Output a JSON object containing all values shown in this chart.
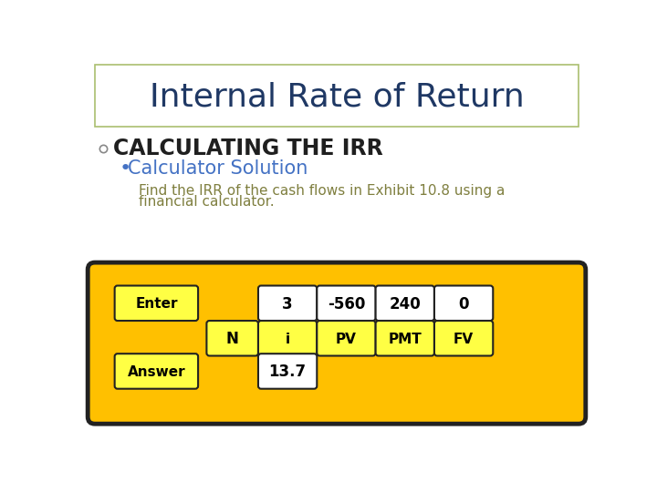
{
  "title": "Internal Rate of Return",
  "title_color": "#1F3864",
  "title_fontsize": 26,
  "bullet1": "CALCULATING THE IRR",
  "bullet1_color": "#1F1F1F",
  "bullet1_fontsize": 17,
  "bullet2": "Calculator Solution",
  "bullet2_color": "#4472C4",
  "bullet2_fontsize": 15,
  "body_text_line1": "Find the IRR of the cash flows in Exhibit 10.8 using a",
  "body_text_line2": "financial calculator.",
  "body_color": "#7F7F3F",
  "body_fontsize": 11,
  "calc_bg": "#FFC000",
  "calc_border": "#222222",
  "white_cell_color": "#FFFFFF",
  "yellow_cell_color": "#FFFF44",
  "enter_label": "Enter",
  "answer_label": "Answer",
  "row1_values": [
    "3",
    "-560",
    "240",
    "0"
  ],
  "row2_labels": [
    "N",
    "i",
    "PV",
    "PMT",
    "FV"
  ],
  "answer_value": "13.7",
  "cell_text_color": "#000000",
  "bg_color": "#FFFFFF",
  "title_border_color": "#AABF70",
  "circle_color": "#888888"
}
